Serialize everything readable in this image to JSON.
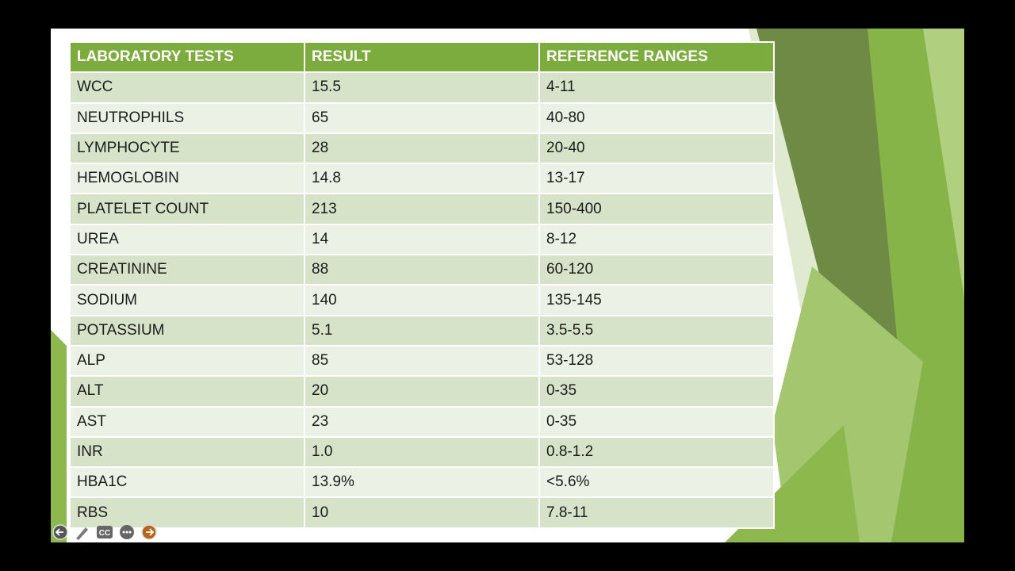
{
  "table": {
    "headers": [
      "LABORATORY TESTS",
      "RESULT",
      "REFERENCE RANGES"
    ],
    "rows": [
      [
        "WCC",
        "15.5",
        "4-11"
      ],
      [
        "NEUTROPHILS",
        "65",
        "40-80"
      ],
      [
        "LYMPHOCYTE",
        "28",
        "20-40"
      ],
      [
        "HEMOGLOBIN",
        "14.8",
        "13-17"
      ],
      [
        "PLATELET COUNT",
        "213",
        "150-400"
      ],
      [
        "UREA",
        "14",
        "8-12"
      ],
      [
        "CREATININE",
        "88",
        "60-120"
      ],
      [
        "SODIUM",
        "140",
        "135-145"
      ],
      [
        "POTASSIUM",
        "5.1",
        "3.5-5.5"
      ],
      [
        "ALP",
        "85",
        "53-128"
      ],
      [
        "ALT",
        "20",
        "0-35"
      ],
      [
        "AST",
        "23",
        "0-35"
      ],
      [
        "INR",
        "1.0",
        "0.8-1.2"
      ],
      [
        "HBA1C",
        "13.9%",
        "<5.6%"
      ],
      [
        "RBS",
        "10",
        "7.8-11"
      ]
    ]
  },
  "controls": {
    "captions": "CC"
  }
}
